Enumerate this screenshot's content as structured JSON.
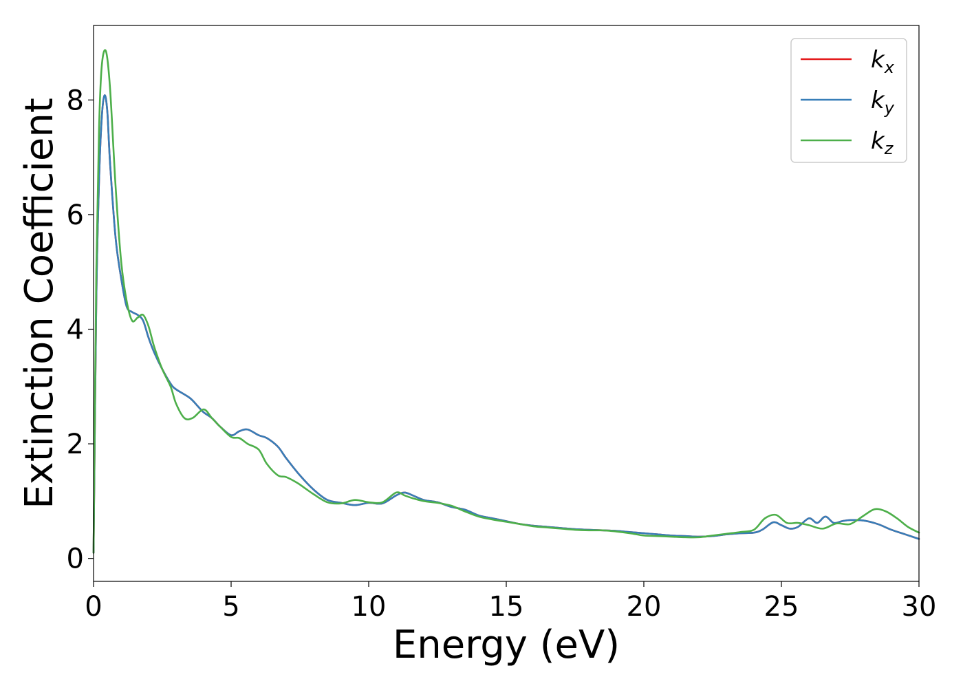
{
  "chart_data": {
    "type": "line",
    "xlabel": "Energy (eV)",
    "ylabel": "Extinction Coefficient",
    "xlim": [
      0,
      30
    ],
    "ylim": [
      -0.4,
      9.3
    ],
    "xticks": [
      "0",
      "5",
      "10",
      "15",
      "20",
      "25",
      "30"
    ],
    "yticks": [
      "0",
      "2",
      "4",
      "6",
      "8"
    ],
    "grid": false,
    "legend_position": "top-right",
    "series": [
      {
        "name": "k",
        "subscript": "x",
        "color": "#e41a1c",
        "x": [
          0,
          0.1,
          0.2,
          0.3,
          0.4,
          0.5,
          0.6,
          0.8,
          1.0,
          1.2,
          1.4,
          1.6,
          1.8,
          2.0,
          2.2,
          2.5,
          2.8,
          3.0,
          3.5,
          3.8,
          4.0,
          4.3,
          4.6,
          5.0,
          5.3,
          5.6,
          6.0,
          6.3,
          6.7,
          7.0,
          7.5,
          8.0,
          8.5,
          9.0,
          9.5,
          10.0,
          10.5,
          11.0,
          11.3,
          11.6,
          12.0,
          12.5,
          13.0,
          13.5,
          14.0,
          14.5,
          15.0,
          15.5,
          16.0,
          16.5,
          17.0,
          17.5,
          18.0,
          18.5,
          19.0,
          19.5,
          20.0,
          20.5,
          21.0,
          21.5,
          22.0,
          22.5,
          23.0,
          23.5,
          24.0,
          24.3,
          24.7,
          25.0,
          25.3,
          25.6,
          26.0,
          26.3,
          26.6,
          26.9,
          27.2,
          27.5,
          28.0,
          28.5,
          29.0,
          29.5,
          30.0
        ],
        "values": [
          0.1,
          4.5,
          6.6,
          7.7,
          8.08,
          7.8,
          6.9,
          5.6,
          4.9,
          4.4,
          4.3,
          4.25,
          4.15,
          3.85,
          3.6,
          3.3,
          3.05,
          2.95,
          2.8,
          2.65,
          2.55,
          2.45,
          2.3,
          2.15,
          2.22,
          2.25,
          2.15,
          2.1,
          1.95,
          1.75,
          1.45,
          1.2,
          1.02,
          0.97,
          0.93,
          0.97,
          0.96,
          1.1,
          1.15,
          1.1,
          1.02,
          0.98,
          0.9,
          0.85,
          0.75,
          0.7,
          0.65,
          0.6,
          0.57,
          0.55,
          0.53,
          0.51,
          0.5,
          0.49,
          0.48,
          0.46,
          0.44,
          0.42,
          0.4,
          0.39,
          0.38,
          0.39,
          0.42,
          0.44,
          0.45,
          0.5,
          0.63,
          0.58,
          0.52,
          0.55,
          0.7,
          0.62,
          0.73,
          0.62,
          0.65,
          0.67,
          0.66,
          0.6,
          0.5,
          0.42,
          0.34
        ]
      },
      {
        "name": "k",
        "subscript": "y",
        "color": "#377eb8",
        "x": [
          0,
          0.1,
          0.2,
          0.3,
          0.4,
          0.5,
          0.6,
          0.8,
          1.0,
          1.2,
          1.4,
          1.6,
          1.8,
          2.0,
          2.2,
          2.5,
          2.8,
          3.0,
          3.5,
          3.8,
          4.0,
          4.3,
          4.6,
          5.0,
          5.3,
          5.6,
          6.0,
          6.3,
          6.7,
          7.0,
          7.5,
          8.0,
          8.5,
          9.0,
          9.5,
          10.0,
          10.5,
          11.0,
          11.3,
          11.6,
          12.0,
          12.5,
          13.0,
          13.5,
          14.0,
          14.5,
          15.0,
          15.5,
          16.0,
          16.5,
          17.0,
          17.5,
          18.0,
          18.5,
          19.0,
          19.5,
          20.0,
          20.5,
          21.0,
          21.5,
          22.0,
          22.5,
          23.0,
          23.5,
          24.0,
          24.3,
          24.7,
          25.0,
          25.3,
          25.6,
          26.0,
          26.3,
          26.6,
          26.9,
          27.2,
          27.5,
          28.0,
          28.5,
          29.0,
          29.5,
          30.0
        ],
        "values": [
          0.1,
          4.5,
          6.6,
          7.7,
          8.08,
          7.8,
          6.9,
          5.6,
          4.9,
          4.4,
          4.3,
          4.25,
          4.15,
          3.85,
          3.6,
          3.3,
          3.05,
          2.95,
          2.8,
          2.65,
          2.55,
          2.45,
          2.3,
          2.15,
          2.22,
          2.25,
          2.15,
          2.1,
          1.95,
          1.75,
          1.45,
          1.2,
          1.02,
          0.97,
          0.93,
          0.97,
          0.96,
          1.1,
          1.15,
          1.1,
          1.02,
          0.98,
          0.9,
          0.85,
          0.75,
          0.7,
          0.65,
          0.6,
          0.57,
          0.55,
          0.53,
          0.51,
          0.5,
          0.49,
          0.48,
          0.46,
          0.44,
          0.42,
          0.4,
          0.39,
          0.38,
          0.39,
          0.42,
          0.44,
          0.45,
          0.5,
          0.63,
          0.58,
          0.52,
          0.55,
          0.7,
          0.62,
          0.73,
          0.62,
          0.65,
          0.67,
          0.66,
          0.6,
          0.5,
          0.42,
          0.34
        ]
      },
      {
        "name": "k",
        "subscript": "z",
        "color": "#4daf4a",
        "x": [
          0,
          0.1,
          0.2,
          0.3,
          0.45,
          0.6,
          0.8,
          1.0,
          1.2,
          1.4,
          1.6,
          1.8,
          2.0,
          2.2,
          2.5,
          2.8,
          3.0,
          3.3,
          3.6,
          4.0,
          4.3,
          4.6,
          5.0,
          5.3,
          5.6,
          6.0,
          6.3,
          6.7,
          7.0,
          7.4,
          7.7,
          8.0,
          8.5,
          9.0,
          9.5,
          10.0,
          10.5,
          11.0,
          11.3,
          11.6,
          12.0,
          12.5,
          13.0,
          13.5,
          14.0,
          14.5,
          15.0,
          15.5,
          16.0,
          16.5,
          17.0,
          17.5,
          18.0,
          18.5,
          19.0,
          19.5,
          20.0,
          20.5,
          21.0,
          21.5,
          22.0,
          22.5,
          23.0,
          23.5,
          24.0,
          24.4,
          24.8,
          25.2,
          25.6,
          26.0,
          26.5,
          27.0,
          27.5,
          28.0,
          28.4,
          28.8,
          29.2,
          29.6,
          30.0
        ],
        "values": [
          0.1,
          5.0,
          7.5,
          8.6,
          8.85,
          8.2,
          6.5,
          5.2,
          4.5,
          4.15,
          4.2,
          4.25,
          4.05,
          3.7,
          3.3,
          3.0,
          2.7,
          2.45,
          2.45,
          2.6,
          2.45,
          2.3,
          2.12,
          2.1,
          2.0,
          1.9,
          1.65,
          1.45,
          1.42,
          1.32,
          1.22,
          1.12,
          0.98,
          0.96,
          1.02,
          0.98,
          0.98,
          1.15,
          1.1,
          1.05,
          1.0,
          0.97,
          0.92,
          0.82,
          0.73,
          0.68,
          0.64,
          0.6,
          0.56,
          0.54,
          0.52,
          0.5,
          0.49,
          0.49,
          0.47,
          0.44,
          0.4,
          0.39,
          0.38,
          0.37,
          0.37,
          0.4,
          0.43,
          0.46,
          0.5,
          0.7,
          0.76,
          0.62,
          0.62,
          0.58,
          0.52,
          0.61,
          0.6,
          0.75,
          0.86,
          0.82,
          0.7,
          0.55,
          0.45
        ]
      }
    ]
  }
}
